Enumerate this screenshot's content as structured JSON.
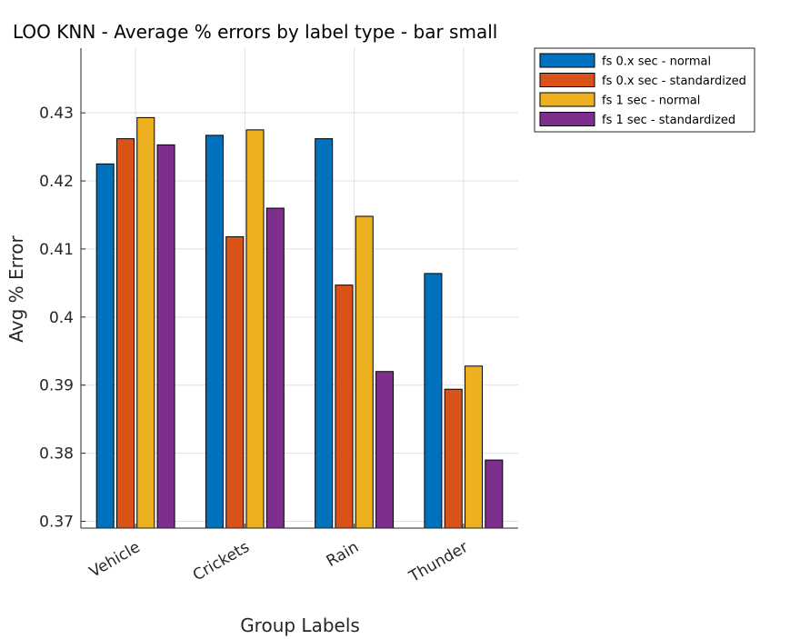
{
  "chart_data": {
    "type": "bar",
    "title": "LOO KNN - Average % errors by label type - bar small",
    "xlabel": "Group Labels",
    "ylabel": "Avg % Error",
    "categories": [
      "Vehicle",
      "Crickets",
      "Rain",
      "Thunder"
    ],
    "series": [
      {
        "name": "fs 0.x sec - normal",
        "color": "#0072BD",
        "values": [
          0.4225,
          0.4267,
          0.4262,
          0.4064
        ]
      },
      {
        "name": "fs 0.x sec - standardized",
        "color": "#D95319",
        "values": [
          0.4262,
          0.4118,
          0.4047,
          0.3894
        ]
      },
      {
        "name": "fs 1 sec - normal",
        "color": "#EDB120",
        "values": [
          0.4293,
          0.4275,
          0.4148,
          0.3928
        ]
      },
      {
        "name": "fs 1 sec - standardized",
        "color": "#7E2F8E",
        "values": [
          0.4253,
          0.416,
          0.392,
          0.379
        ]
      }
    ],
    "ylim": [
      0.369,
      0.4395
    ],
    "yticks": [
      0.37,
      0.38,
      0.39,
      0.4,
      0.41,
      0.42,
      0.43
    ],
    "ytick_labels": [
      "0.37",
      "0.38",
      "0.39",
      "0.4",
      "0.41",
      "0.42",
      "0.43"
    ],
    "grid": true,
    "legend_position": "outside-top-right"
  }
}
